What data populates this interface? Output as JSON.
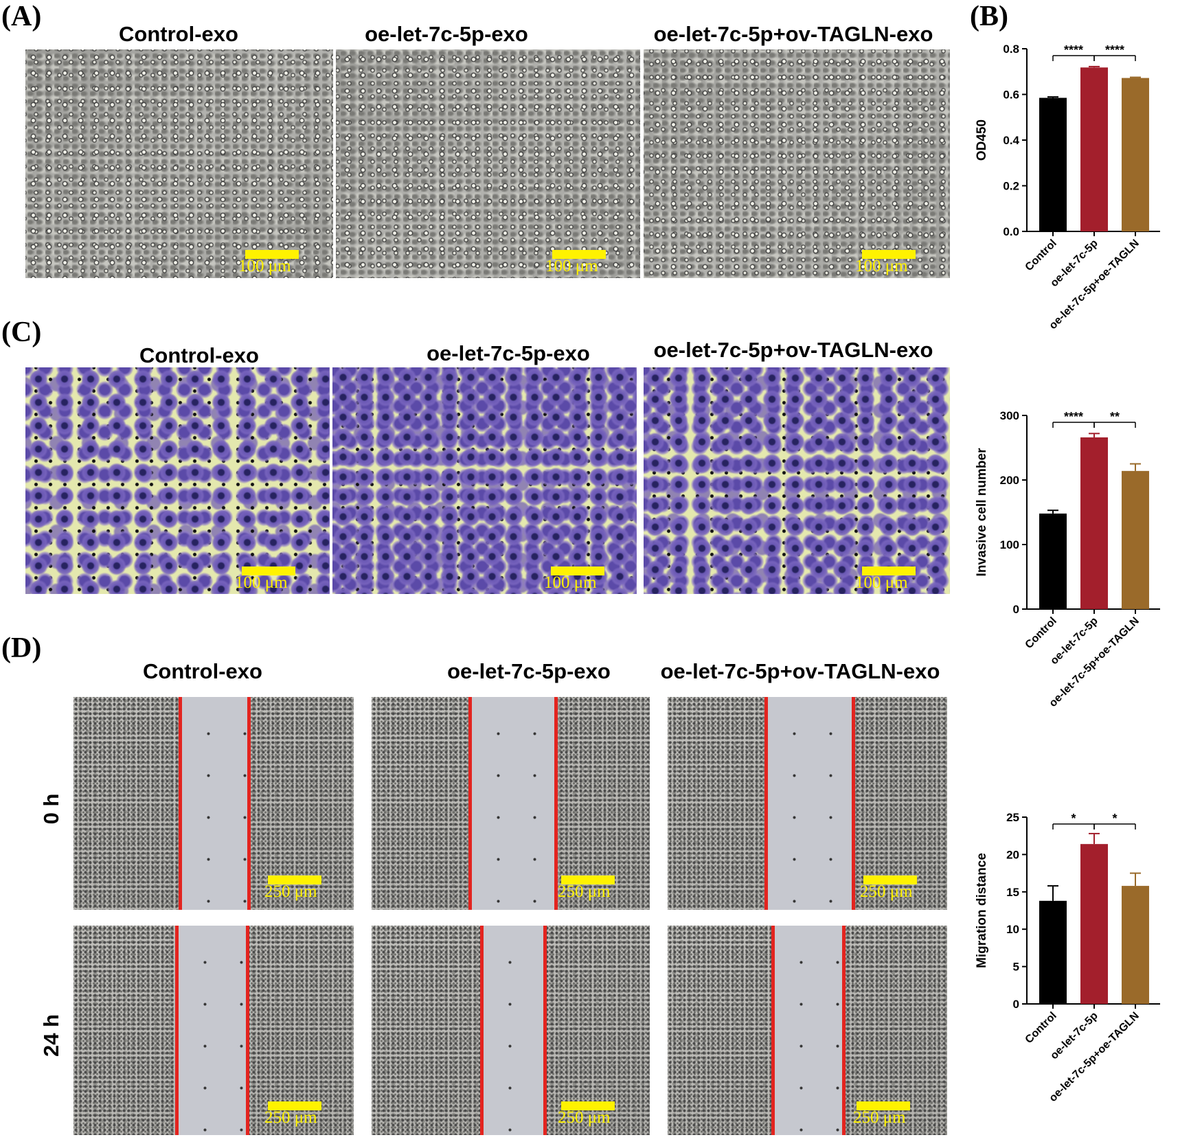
{
  "panels": {
    "A": {
      "letter": "(A)",
      "titles": [
        "Control-exo",
        "oe-let-7c-5p-exo",
        "oe-let-7c-5p+ov-TAGLN-exo"
      ],
      "scale_label": "100 μm"
    },
    "B": {
      "letter": "(B)"
    },
    "C": {
      "letter": "(C)",
      "titles": [
        "Control-exo",
        "oe-let-7c-5p-exo",
        "oe-let-7c-5p+ov-TAGLN-exo"
      ],
      "scale_label": "100 μm"
    },
    "D": {
      "letter": "(D)",
      "titles": [
        "Control-exo",
        "oe-let-7c-5p-exo",
        "oe-let-7c-5p+ov-TAGLN-exo"
      ],
      "row_labels": [
        "0 h",
        "24 h"
      ],
      "scale_label": "250 μm"
    }
  },
  "colors": {
    "control": "#000000",
    "oe_let": "#a31f2c",
    "oe_let_tagln": "#9a6a2a",
    "scale_bar": "#fff200",
    "wound_line": "#e3241f"
  },
  "chart_data": [
    {
      "panel": "B",
      "type": "bar",
      "categories": [
        "Control",
        "oe-let-7c-5p",
        "oe-let-7c-5p+oe-TAGLN"
      ],
      "values": [
        0.585,
        0.718,
        0.672
      ],
      "errors": [
        0.004,
        0.004,
        0.003
      ],
      "ylabel": "OD450",
      "ylim": [
        0,
        0.8
      ],
      "yticks": [
        0.0,
        0.2,
        0.4,
        0.6,
        0.8
      ],
      "ytick_labels": [
        "0.0",
        "0.2",
        "0.4",
        "0.6",
        "0.8"
      ],
      "significance": [
        {
          "from": 0,
          "to": 1,
          "label": "****"
        },
        {
          "from": 1,
          "to": 2,
          "label": "****"
        }
      ]
    },
    {
      "panel": "C",
      "type": "bar",
      "categories": [
        "Control",
        "oe-let-7c-5p",
        "oe-let-7c-5p+oe-TAGLN"
      ],
      "values": [
        148,
        266,
        214
      ],
      "errors": [
        5,
        6,
        11
      ],
      "ylabel": "Invasive cell number",
      "ylim": [
        0,
        300
      ],
      "yticks": [
        0,
        100,
        200,
        300
      ],
      "ytick_labels": [
        "0",
        "100",
        "200",
        "300"
      ],
      "significance": [
        {
          "from": 0,
          "to": 1,
          "label": "****"
        },
        {
          "from": 1,
          "to": 2,
          "label": "**"
        }
      ]
    },
    {
      "panel": "D",
      "type": "bar",
      "categories": [
        "Control",
        "oe-let-7c-5p",
        "oe-let-7c-5p+oe-TAGLN"
      ],
      "values": [
        13.8,
        21.4,
        15.8
      ],
      "errors": [
        2.0,
        1.4,
        1.7
      ],
      "ylabel": "Migration distance",
      "ylim": [
        0,
        25
      ],
      "yticks": [
        0,
        5,
        10,
        15,
        20,
        25
      ],
      "ytick_labels": [
        "0",
        "5",
        "10",
        "15",
        "20",
        "25"
      ],
      "significance": [
        {
          "from": 0,
          "to": 1,
          "label": "*"
        },
        {
          "from": 1,
          "to": 2,
          "label": "*"
        }
      ]
    }
  ]
}
